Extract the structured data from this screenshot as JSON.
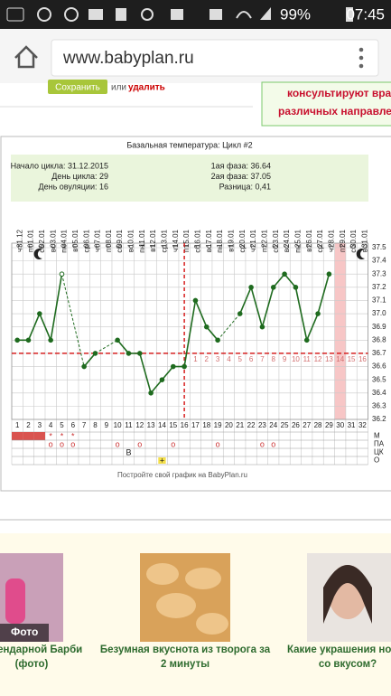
{
  "status_bar": {
    "battery": "99%",
    "time": "07:45"
  },
  "browser": {
    "url": "www.babyplan.ru"
  },
  "banner": {
    "button": "Сохранить",
    "or": "или",
    "delete": "удалить",
    "promo": [
      "консультируют врач",
      "различных направлен"
    ]
  },
  "chart_data": {
    "type": "line",
    "title": "Базальная температура: Цикл #2",
    "info": [
      "Начало цикла: 31.12.2015",
      "День цикла: 29",
      "День овуляции: 16",
      "1ая фаза: 36.64",
      "2ая фаза: 37.05",
      "Разница: 0,41"
    ],
    "weekdays": [
      "чт",
      "пт",
      "сб",
      "вс",
      "пн",
      "вт",
      "ср",
      "чт",
      "пт",
      "сб",
      "вс",
      "пн",
      "вт",
      "ср",
      "чт",
      "пт",
      "сб",
      "вс",
      "пн",
      "вт",
      "ср",
      "чт",
      "пт",
      "сб",
      "вс",
      "пн",
      "вт",
      "ср",
      "чт",
      "пт",
      "сб",
      "вс"
    ],
    "x": [
      "31.12",
      "01.01",
      "02.01",
      "03.01",
      "04.01",
      "05.01",
      "06.01",
      "07.01",
      "08.01",
      "09.01",
      "10.01",
      "11.01",
      "12.01",
      "13.01",
      "14.01",
      "15.01",
      "16.01",
      "17.01",
      "18.01",
      "19.01",
      "20.01",
      "21.01",
      "22.01",
      "23.01",
      "24.01",
      "25.01",
      "26.01",
      "27.01",
      "28.01",
      "29.01",
      "30.01",
      "31.01"
    ],
    "day_numbers": [
      1,
      2,
      3,
      4,
      5,
      6,
      7,
      8,
      9,
      10,
      11,
      12,
      13,
      14,
      15,
      16,
      17,
      18,
      19,
      20,
      21,
      22,
      23,
      24,
      25,
      26,
      27,
      28,
      29,
      30,
      31,
      32
    ],
    "values": [
      36.8,
      36.8,
      37.0,
      36.8,
      37.3,
      null,
      36.6,
      36.7,
      null,
      36.8,
      36.7,
      36.7,
      36.4,
      36.5,
      36.6,
      36.6,
      37.1,
      36.9,
      36.8,
      null,
      37.0,
      37.2,
      36.9,
      37.2,
      37.3,
      37.2,
      36.8,
      37.0,
      37.3,
      null,
      null,
      null
    ],
    "color": "#1f6b1f",
    "ylim": [
      36.2,
      37.5
    ],
    "yticks": [
      37.5,
      37.4,
      37.3,
      37.2,
      37.1,
      {
        "value": 37,
        "label": "37.0"
      },
      36.9,
      36.8,
      36.7,
      36.6,
      36.5,
      36.4,
      36.3,
      36.2
    ],
    "grid": true,
    "coverline": 36.7,
    "coverline_color": "#d62020",
    "ovulation_day": 16,
    "phase_days": [
      1,
      2,
      3,
      4,
      5,
      6,
      7,
      8,
      9,
      10,
      11,
      12,
      13,
      14,
      15,
      16
    ],
    "highlight_day": 30,
    "rows": [
      {
        "label": "М",
        "filled": [
          1,
          2,
          3
        ],
        "marks": [
          {
            "day": 4,
            "text": "*"
          },
          {
            "day": 5,
            "text": "*"
          },
          {
            "day": 6,
            "text": "*"
          }
        ]
      },
      {
        "label": "ПА",
        "filled": [],
        "marks": [
          {
            "day": 4,
            "text": "о"
          },
          {
            "day": 5,
            "text": "о"
          },
          {
            "day": 6,
            "text": "о"
          },
          {
            "day": 10,
            "text": "о"
          },
          {
            "day": 12,
            "text": "о"
          },
          {
            "day": 15,
            "text": "о"
          },
          {
            "day": 19,
            "text": "о"
          },
          {
            "day": 23,
            "text": "о"
          },
          {
            "day": 24,
            "text": "о"
          }
        ]
      },
      {
        "label": "ЦК",
        "filled": [],
        "marks": [
          {
            "day": 11,
            "text": "В"
          }
        ]
      },
      {
        "label": "О",
        "filled": [],
        "marks": [
          {
            "day": 14,
            "text": "+"
          }
        ]
      }
    ],
    "footer": "Постройте свой график на BabyPlan.ru"
  },
  "ads": [
    {
      "badge": "Фото",
      "caption": [
        "легендарной Барби",
        "(фото)"
      ]
    },
    {
      "caption": [
        "Безумная вкуснота из творога за",
        "2 минуты"
      ]
    },
    {
      "caption": [
        "Какие украшения носят",
        "со вкусом?"
      ]
    }
  ]
}
